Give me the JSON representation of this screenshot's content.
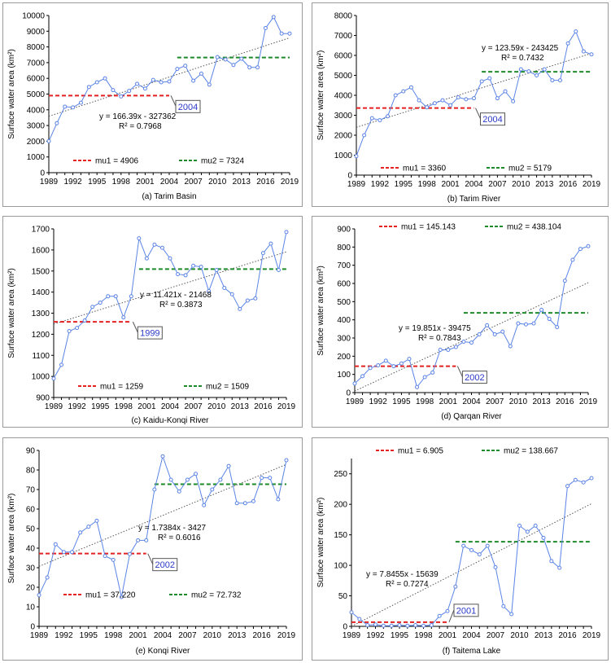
{
  "chart_data": [
    {
      "type": "line",
      "caption": "(a) Tarim Basin",
      "ylabel": "Surface water area (km²)",
      "xlabel": "",
      "ylim": [
        0,
        10000
      ],
      "yticks": [
        "0",
        "1000",
        "2000",
        "3000",
        "4000",
        "5000",
        "6000",
        "7000",
        "8000",
        "9000",
        "10000"
      ],
      "xticks": [
        "1989",
        "1992",
        "1995",
        "1998",
        "2001",
        "2004",
        "2007",
        "2010",
        "2013",
        "2016",
        "2019"
      ],
      "x": [
        1989,
        1990,
        1991,
        1992,
        1993,
        1994,
        1995,
        1996,
        1997,
        1998,
        1999,
        2000,
        2001,
        2002,
        2003,
        2004,
        2005,
        2006,
        2007,
        2008,
        2009,
        2010,
        2011,
        2012,
        2013,
        2014,
        2015,
        2016,
        2017,
        2018,
        2019
      ],
      "values": [
        2000,
        3150,
        4200,
        4150,
        4450,
        5450,
        5750,
        6000,
        5250,
        4850,
        5200,
        5650,
        5350,
        5900,
        5750,
        5800,
        6600,
        6800,
        5850,
        6300,
        5600,
        7350,
        7200,
        6850,
        7250,
        6700,
        6700,
        9200,
        9900,
        8850,
        8850
      ],
      "trend": {
        "slope": 166.39,
        "intercept": -327362,
        "equation": "y = 166.39x - 327362",
        "r2": "R² = 0.7968"
      },
      "mu1": {
        "label": "mu1 = 4906",
        "value": 4906,
        "from": 1989,
        "to": 2004
      },
      "mu2": {
        "label": "mu2 = 7324",
        "value": 7324,
        "from": 2005,
        "to": 2019
      },
      "change_year": "2004",
      "legend_position": "bottom"
    },
    {
      "type": "line",
      "caption": "(b) Tarim River",
      "ylabel": "Surface water area (km²)",
      "xlabel": "",
      "ylim": [
        0,
        8000
      ],
      "yticks": [
        "0",
        "1000",
        "2000",
        "3000",
        "4000",
        "5000",
        "6000",
        "7000",
        "8000"
      ],
      "xticks": [
        "1989",
        "1992",
        "1995",
        "1998",
        "2001",
        "2004",
        "2007",
        "2010",
        "2013",
        "2016",
        "2019"
      ],
      "x": [
        1989,
        1990,
        1991,
        1992,
        1993,
        1994,
        1995,
        1996,
        1997,
        1998,
        1999,
        2000,
        2001,
        2002,
        2003,
        2004,
        2005,
        2006,
        2007,
        2008,
        2009,
        2010,
        2011,
        2012,
        2013,
        2014,
        2015,
        2016,
        2017,
        2018,
        2019
      ],
      "values": [
        950,
        2000,
        2850,
        2750,
        2950,
        4000,
        4200,
        4400,
        3750,
        3400,
        3600,
        3750,
        3500,
        3900,
        3800,
        3850,
        4700,
        4850,
        3850,
        4200,
        3700,
        5300,
        5200,
        5000,
        5300,
        4750,
        4750,
        6600,
        7200,
        6200,
        6050
      ],
      "trend": {
        "slope": 123.59,
        "intercept": -243425,
        "equation": "y = 123.59x - 243425",
        "r2": "R² = 0.7432"
      },
      "mu1": {
        "label": "mu1 = 3360",
        "value": 3360,
        "from": 1989,
        "to": 2004
      },
      "mu2": {
        "label": "mu2 = 5179",
        "value": 5179,
        "from": 2005,
        "to": 2019
      },
      "change_year": "2004",
      "legend_position": "bottom"
    },
    {
      "type": "line",
      "caption": "(c) Kaidu-Konqi River",
      "ylabel": "Surface water area (km²)",
      "xlabel": "",
      "ylim": [
        900,
        1700
      ],
      "yticks": [
        "900",
        "1000",
        "1100",
        "1200",
        "1300",
        "1400",
        "1500",
        "1600",
        "1700"
      ],
      "xticks": [
        "1989",
        "1992",
        "1995",
        "1998",
        "2001",
        "2004",
        "2007",
        "2010",
        "2013",
        "2016",
        "2019"
      ],
      "x": [
        1989,
        1990,
        1991,
        1992,
        1993,
        1994,
        1995,
        1996,
        1997,
        1998,
        1999,
        2000,
        2001,
        2002,
        2003,
        2004,
        2005,
        2006,
        2007,
        2008,
        2009,
        2010,
        2011,
        2012,
        2013,
        2014,
        2015,
        2016,
        2017,
        2018,
        2019
      ],
      "values": [
        990,
        1055,
        1215,
        1230,
        1265,
        1330,
        1350,
        1380,
        1380,
        1280,
        1380,
        1655,
        1560,
        1625,
        1610,
        1560,
        1485,
        1480,
        1525,
        1520,
        1405,
        1505,
        1420,
        1390,
        1320,
        1360,
        1370,
        1585,
        1630,
        1505,
        1685
      ],
      "trend": {
        "slope": 11.421,
        "intercept": -21468,
        "equation": "y = 11.421x - 21468",
        "r2": "R² = 0.3873"
      },
      "mu1": {
        "label": "mu1 = 1259",
        "value": 1259,
        "from": 1989,
        "to": 1999
      },
      "mu2": {
        "label": "mu2 = 1509",
        "value": 1509,
        "from": 2000,
        "to": 2019
      },
      "change_year": "1999",
      "legend_position": "bottom"
    },
    {
      "type": "line",
      "caption": "(d)  Qarqan River",
      "ylabel": "Surface water area (km²)",
      "xlabel": "",
      "ylim": [
        0,
        900
      ],
      "yticks": [
        "0",
        "100",
        "200",
        "300",
        "400",
        "500",
        "600",
        "700",
        "800",
        "900"
      ],
      "xticks": [
        "1989",
        "1992",
        "1995",
        "1998",
        "2001",
        "2004",
        "2007",
        "2010",
        "2013",
        "2016",
        "2019"
      ],
      "x": [
        1989,
        1990,
        1991,
        1992,
        1993,
        1994,
        1995,
        1996,
        1997,
        1998,
        1999,
        2000,
        2001,
        2002,
        2003,
        2004,
        2005,
        2006,
        2007,
        2008,
        2009,
        2010,
        2011,
        2012,
        2013,
        2014,
        2015,
        2016,
        2017,
        2018,
        2019
      ],
      "values": [
        50,
        90,
        135,
        150,
        175,
        145,
        160,
        185,
        30,
        85,
        110,
        235,
        235,
        250,
        280,
        275,
        320,
        370,
        320,
        335,
        255,
        380,
        375,
        380,
        455,
        405,
        360,
        615,
        730,
        790,
        805
      ],
      "trend": {
        "slope": 19.851,
        "intercept": -39475,
        "equation": "y = 19.851x - 39475",
        "r2": "R² = 0.7843"
      },
      "mu1": {
        "label": "mu1 = 145.143",
        "value": 145.143,
        "from": 1989,
        "to": 2002
      },
      "mu2": {
        "label": "mu2 = 438.104",
        "value": 438.104,
        "from": 2003,
        "to": 2019
      },
      "change_year": "2002",
      "legend_position": "top"
    },
    {
      "type": "line",
      "caption": "(e) Konqi River",
      "ylabel": "Surface water area (km²)",
      "xlabel": "",
      "ylim": [
        0,
        90
      ],
      "yticks": [
        "0",
        "10",
        "20",
        "30",
        "40",
        "50",
        "60",
        "70",
        "80",
        "90"
      ],
      "xticks": [
        "1989",
        "1992",
        "1995",
        "1998",
        "2001",
        "2004",
        "2007",
        "2010",
        "2013",
        "2016",
        "2019"
      ],
      "x": [
        1989,
        1990,
        1991,
        1992,
        1993,
        1994,
        1995,
        1996,
        1997,
        1998,
        1999,
        2000,
        2001,
        2002,
        2003,
        2004,
        2005,
        2006,
        2007,
        2008,
        2009,
        2010,
        2011,
        2012,
        2013,
        2014,
        2015,
        2016,
        2017,
        2018,
        2019
      ],
      "values": [
        16,
        25,
        42,
        38,
        38,
        48,
        51,
        54,
        36,
        34,
        15,
        37,
        44,
        44,
        70,
        87,
        75,
        69,
        75,
        78,
        62,
        70,
        75,
        82,
        63,
        63,
        64,
        76,
        76,
        65,
        85
      ],
      "trend": {
        "slope": 1.7384,
        "intercept": -3427,
        "equation": "y = 1.7384x - 3427",
        "r2": "R² = 0.6016"
      },
      "mu1": {
        "label": "mu1 = 37.220",
        "value": 37.22,
        "from": 1989,
        "to": 2002
      },
      "mu2": {
        "label": "mu2 = 72.732",
        "value": 72.732,
        "from": 2003,
        "to": 2019
      },
      "change_year": "2002",
      "legend_position": "bottom"
    },
    {
      "type": "line",
      "caption": "(f) Taitema Lake",
      "ylabel": "Surface water area (km²)",
      "xlabel": "",
      "ylim": [
        0,
        275
      ],
      "yticks": [
        "0",
        "50",
        "100",
        "150",
        "200",
        "250"
      ],
      "ytick_values": [
        0,
        50,
        100,
        150,
        200,
        250
      ],
      "xticks": [
        "1989",
        "1992",
        "1995",
        "1998",
        "2001",
        "2004",
        "2007",
        "2010",
        "2013",
        "2016",
        "2019"
      ],
      "x": [
        1989,
        1990,
        1991,
        1992,
        1993,
        1994,
        1995,
        1996,
        1997,
        1998,
        1999,
        2000,
        2001,
        2002,
        2003,
        2004,
        2005,
        2006,
        2007,
        2008,
        2009,
        2010,
        2011,
        2012,
        2013,
        2014,
        2015,
        2016,
        2017,
        2018,
        2019
      ],
      "values": [
        23,
        12,
        2,
        3,
        1,
        1,
        2,
        1,
        2,
        1,
        2,
        17,
        25,
        65,
        132,
        125,
        118,
        132,
        97,
        33,
        20,
        165,
        155,
        165,
        145,
        107,
        96,
        230,
        240,
        236,
        243
      ],
      "trend": {
        "slope": 7.8455,
        "intercept": -15639,
        "equation": "y = 7.8455x - 15639",
        "r2": "R² = 0.7274"
      },
      "mu1": {
        "label": "mu1 = 6.905",
        "value": 6.905,
        "from": 1989,
        "to": 2001
      },
      "mu2": {
        "label": "mu2 = 138.667",
        "value": 138.667,
        "from": 2002,
        "to": 2019
      },
      "change_year": "2001",
      "legend_position": "top"
    }
  ],
  "colors": {
    "series": "#5b84e6",
    "mu1": "#e32222",
    "mu2": "#1e8a2a",
    "trend": "#555555",
    "change_year_text": "#2a39c8"
  }
}
